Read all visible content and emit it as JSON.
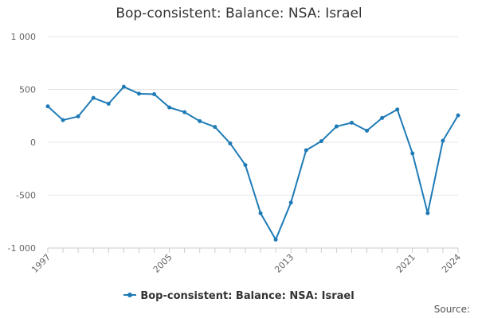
{
  "chart_data": {
    "type": "line",
    "title": "Bop-consistent: Balance: NSA: Israel",
    "xlabel": "",
    "ylabel": "",
    "x": [
      1997,
      1998,
      1999,
      2000,
      2001,
      2002,
      2003,
      2004,
      2005,
      2006,
      2007,
      2008,
      2009,
      2010,
      2011,
      2012,
      2013,
      2014,
      2015,
      2016,
      2017,
      2018,
      2019,
      2020,
      2021,
      2022,
      2023,
      2024
    ],
    "series": [
      {
        "name": "Bop-consistent: Balance: NSA: Israel",
        "values": [
          340,
          210,
          245,
          420,
          365,
          525,
          460,
          455,
          330,
          285,
          200,
          145,
          -10,
          -215,
          -670,
          -920,
          -570,
          -75,
          10,
          150,
          185,
          110,
          230,
          310,
          -105,
          -670,
          15,
          255
        ]
      }
    ],
    "xticks": [
      1997,
      2005,
      2013,
      2021,
      2024
    ],
    "xtick_labels": [
      "1997",
      "2005",
      "2013",
      "2021",
      "2024"
    ],
    "yticks": [
      -1000,
      -500,
      0,
      500,
      1000
    ],
    "ytick_labels": [
      "-1 000",
      "-500",
      "0",
      "500",
      "1 000"
    ],
    "xlim": [
      1997,
      2024
    ],
    "ylim": [
      -1000,
      1000
    ],
    "grid": true,
    "legend_position": "bottom-center",
    "color": "#1f7bb6"
  },
  "legend": {
    "label": "Bop-consistent: Balance: NSA: Israel"
  },
  "source": {
    "label": "Source:"
  }
}
